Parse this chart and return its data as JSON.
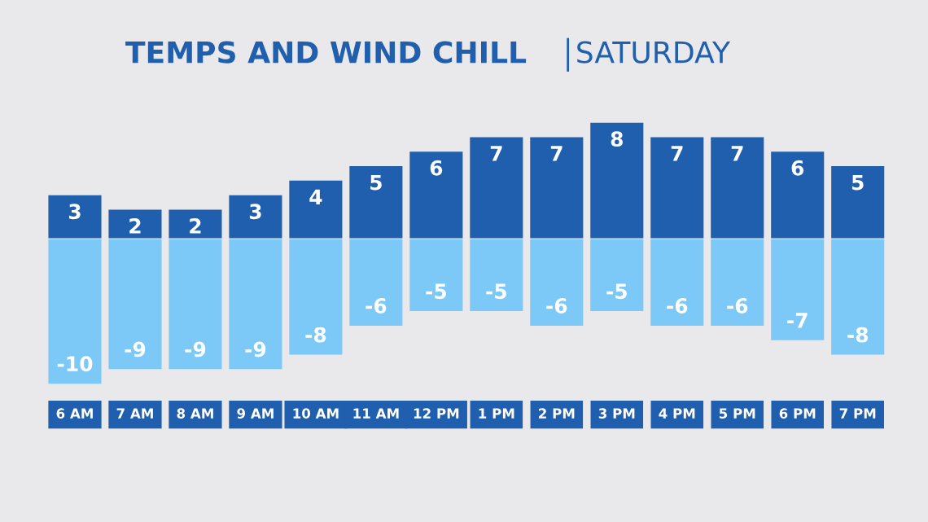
{
  "chart_data": {
    "type": "bar",
    "title": "TEMPS AND WIND CHILL",
    "subtitle": "SATURDAY",
    "categories": [
      "6 AM",
      "7 AM",
      "8 AM",
      "9 AM",
      "10 AM",
      "11 AM",
      "12 PM",
      "1 PM",
      "2 PM",
      "3 PM",
      "4 PM",
      "5 PM",
      "6 PM",
      "7 PM"
    ],
    "series": [
      {
        "color": "#1f5fae",
        "values": [
          3,
          2,
          2,
          3,
          4,
          5,
          6,
          7,
          7,
          8,
          7,
          7,
          6,
          5
        ]
      },
      {
        "color": "#7cc8f6",
        "values": [
          -10,
          -9,
          -9,
          -9,
          -8,
          -6,
          -5,
          -5,
          -6,
          -5,
          -6,
          -6,
          -7,
          -8
        ]
      }
    ],
    "stacked": true,
    "tick_labels": "x",
    "data_labels": true,
    "grid": false
  }
}
